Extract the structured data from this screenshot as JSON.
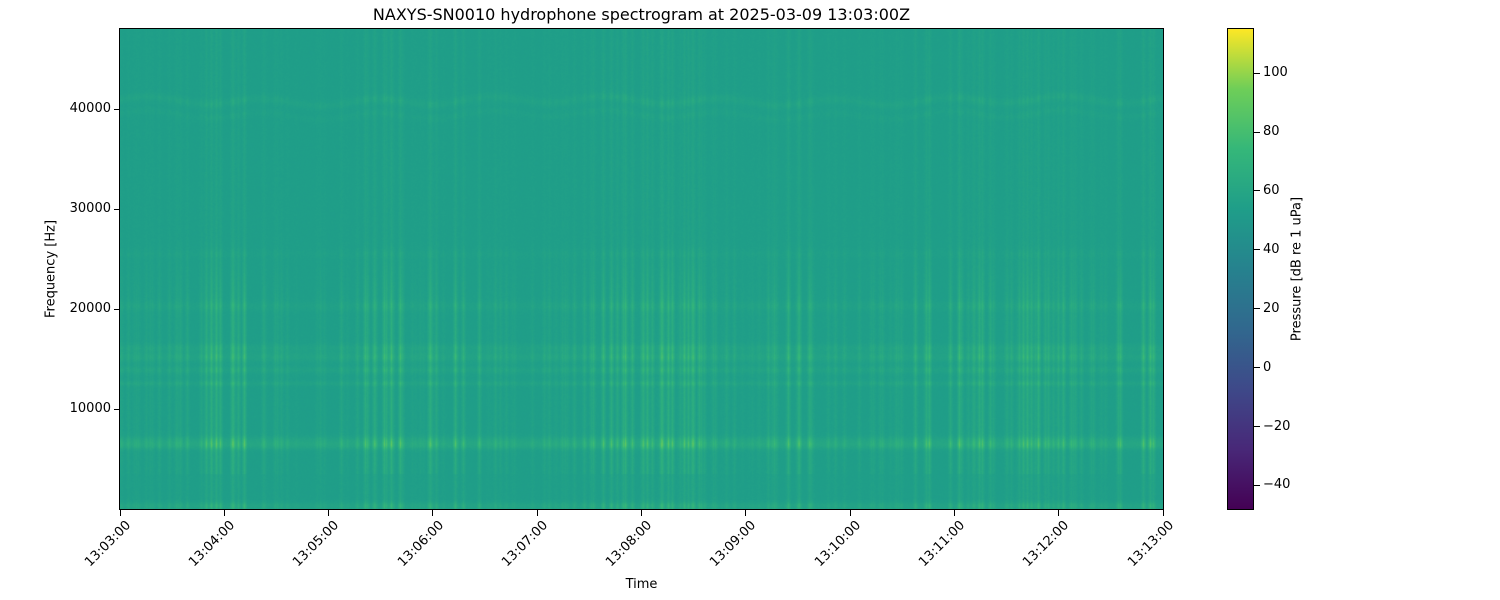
{
  "chart_data": {
    "type": "heatmap",
    "subtype": "spectrogram",
    "title": "NAXYS-SN0010 hydrophone spectrogram at 2025-03-09 13:03:00Z",
    "xlabel": "Time",
    "ylabel": "Frequency [Hz]",
    "colorbar_label": "Pressure [dB re 1 uPa]",
    "colormap": "viridis",
    "x_ticks": [
      "13:03:00",
      "13:04:00",
      "13:05:00",
      "13:06:00",
      "13:07:00",
      "13:08:00",
      "13:09:00",
      "13:10:00",
      "13:11:00",
      "13:12:00",
      "13:13:00"
    ],
    "x_range": [
      "13:03:00",
      "13:13:00"
    ],
    "y_ticks_hz": [
      10000,
      20000,
      30000,
      40000
    ],
    "y_range_hz": [
      0,
      48000
    ],
    "colorbar_ticks_db": [
      100,
      80,
      60,
      40,
      20,
      0,
      -20,
      -40
    ],
    "color_range_db": [
      -48,
      115
    ],
    "background_level_db": 54,
    "colormap_stops": [
      {
        "pos": 0.0,
        "color": "#440154"
      },
      {
        "pos": 0.125,
        "color": "#482878"
      },
      {
        "pos": 0.25,
        "color": "#3e4989"
      },
      {
        "pos": 0.375,
        "color": "#31688e"
      },
      {
        "pos": 0.5,
        "color": "#26828e"
      },
      {
        "pos": 0.625,
        "color": "#1f9e89"
      },
      {
        "pos": 0.75,
        "color": "#35b779"
      },
      {
        "pos": 0.875,
        "color": "#6ece58"
      },
      {
        "pos": 1.0,
        "color": "#fde725"
      }
    ],
    "features": {
      "horizontal_bands": [
        {
          "freq_hz": 300,
          "sigma_hz": 250,
          "peak_boost_db": 12,
          "wavy": false,
          "note": "bright band along bottom edge"
        },
        {
          "freq_hz": 6350,
          "sigma_hz": 280,
          "peak_boost_db": 15,
          "wavy": false,
          "note": "strongest tonal band ~6.5 kHz"
        },
        {
          "freq_hz": 6850,
          "sigma_hz": 300,
          "peak_boost_db": 11,
          "wavy": false
        },
        {
          "freq_hz": 12550,
          "sigma_hz": 180,
          "peak_boost_db": 8,
          "wavy": false
        },
        {
          "freq_hz": 13900,
          "sigma_hz": 250,
          "peak_boost_db": 8,
          "wavy": false
        },
        {
          "freq_hz": 15200,
          "sigma_hz": 350,
          "peak_boost_db": 11,
          "wavy": false
        },
        {
          "freq_hz": 16100,
          "sigma_hz": 280,
          "peak_boost_db": 8,
          "wavy": false
        },
        {
          "freq_hz": 20300,
          "sigma_hz": 350,
          "peak_boost_db": 6,
          "wavy": false
        },
        {
          "freq_hz": 25500,
          "sigma_hz": 300,
          "peak_boost_db": 3,
          "wavy": false
        },
        {
          "freq_hz": 39400,
          "sigma_hz": 250,
          "peak_boost_db": 2.5,
          "wavy": true
        },
        {
          "freq_hz": 40800,
          "sigma_hz": 300,
          "peak_boost_db": 5,
          "wavy": true
        }
      ],
      "vertical_streaks": {
        "description": "broadband transient pulses, strongest below ~21 kHz",
        "max_boost_db": 14,
        "cluster_times": [
          "13:03:50",
          "13:04:10",
          "13:05:30",
          "13:05:50",
          "13:06:10",
          "13:07:40",
          "13:08:00",
          "13:08:20",
          "13:09:30",
          "13:10:50",
          "13:11:05",
          "13:11:50",
          "13:12:45"
        ]
      }
    }
  }
}
